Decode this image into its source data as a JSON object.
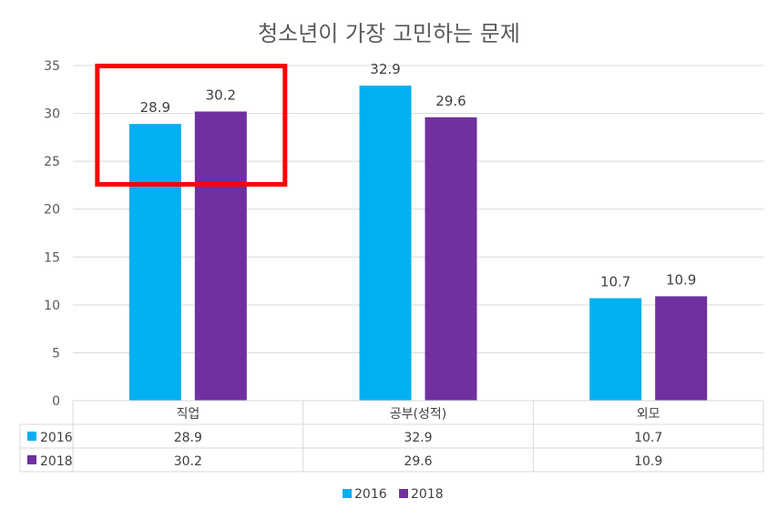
{
  "chart_data": {
    "type": "bar",
    "title": "청소년이 가장 고민하는 문제",
    "categories": [
      "직업",
      "공부(성적)",
      "외모"
    ],
    "series": [
      {
        "name": "2016",
        "color": "#00B0F0",
        "values": [
          28.9,
          32.9,
          10.7
        ]
      },
      {
        "name": "2018",
        "color": "#7030A0",
        "values": [
          30.2,
          29.6,
          10.9
        ]
      }
    ],
    "ylim": [
      0,
      35
    ],
    "yticks": [
      0,
      5,
      10,
      15,
      20,
      25,
      30,
      35
    ],
    "grid": true,
    "legend": "bottom",
    "data_table": true,
    "highlight": {
      "category": "직업",
      "color": "#FF0000"
    }
  }
}
